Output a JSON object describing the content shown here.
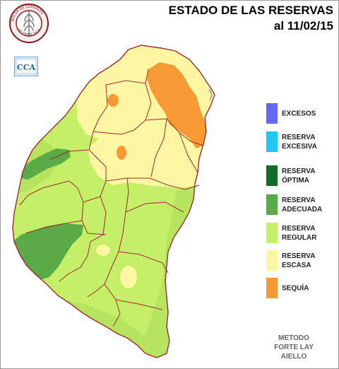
{
  "title": {
    "line1": "ESTADO DE LAS RESERVAS",
    "line2": "al 11/02/15"
  },
  "logos": {
    "seal_icon": "bolsa-de-cereales-seal",
    "seal_text": "BOLSA DE CEREALES DE ENTRE RIOS",
    "cca_text": "CCA"
  },
  "legend": [
    {
      "line1": "EXCESOS",
      "line2": "",
      "color": "#6666ff"
    },
    {
      "line1": "RESERVA",
      "line2": "EXCESIVA",
      "color": "#1ec8f5"
    },
    {
      "line1": "RESERVA",
      "line2": "ÓPTIMA",
      "color": "#126c26"
    },
    {
      "line1": "RESERVA",
      "line2": "ADECUADA",
      "color": "#5aaa48"
    },
    {
      "line1": "RESERVA",
      "line2": "REGULAR",
      "color": "#c6ef69"
    },
    {
      "line1": "RESERVA",
      "line2": "ESCASA",
      "color": "#fff6a3"
    },
    {
      "line1": "SEQUÍA",
      "line2": "",
      "color": "#f79a36"
    }
  ],
  "method": {
    "line1": "METODO",
    "line2": "FORTE LAY",
    "line3": "AIELLO"
  }
}
